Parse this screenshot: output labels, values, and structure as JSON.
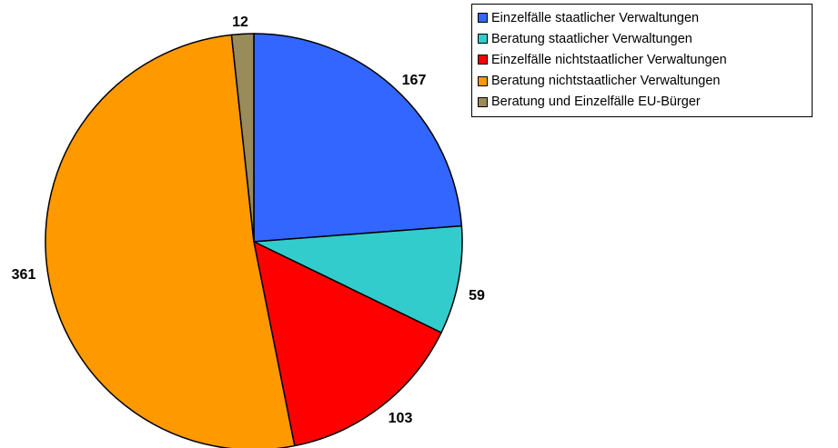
{
  "chart_data": {
    "type": "pie",
    "categories": [
      "Einzelfälle staatlicher Verwaltungen",
      "Beratung staatlicher Verwaltungen",
      "Einzelfälle nichtstaatlicher Verwaltungen",
      "Beratung nichtstaatlicher Verwaltungen",
      "Beratung und Einzelfälle EU-Bürger"
    ],
    "values": [
      167,
      59,
      103,
      361,
      12
    ],
    "value_labels": [
      "167",
      "59",
      "103",
      "361",
      "12"
    ],
    "colors": [
      "#3366ff",
      "#33cccc",
      "#ff0000",
      "#ff9900",
      "#998b5a"
    ],
    "start_angle": "12 o'clock",
    "direction": "clockwise",
    "legend_position": "top-right"
  }
}
